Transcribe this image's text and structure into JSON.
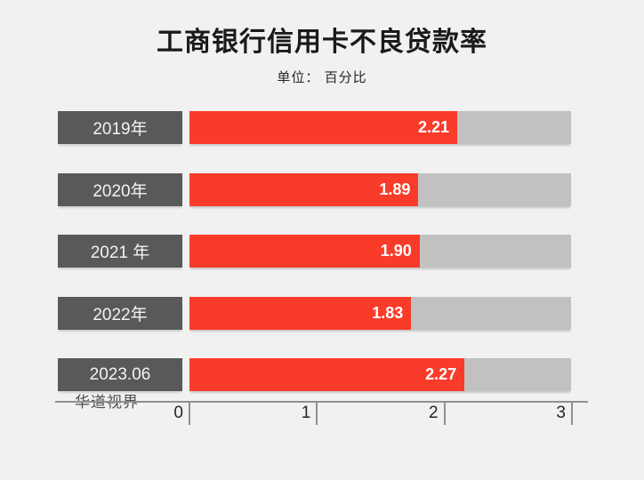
{
  "header": {
    "title": "工商银行信用卡不良贷款率",
    "subtitle": "单位： 百分比"
  },
  "watermark": "华道视界",
  "chart_data": {
    "type": "bar",
    "orientation": "horizontal",
    "title": "工商银行信用卡不良贷款率",
    "unit_label": "单位： 百分比",
    "categories": [
      "2019年",
      "2020年",
      "2021 年",
      "2022年",
      "2023.06"
    ],
    "values": [
      2.21,
      1.89,
      1.9,
      1.83,
      2.27
    ],
    "value_labels": [
      "2.21",
      "1.89",
      "1.90",
      "1.83",
      "2.27"
    ],
    "xlim": [
      0,
      3
    ],
    "x_ticks": [
      "0",
      "1",
      "2",
      "3"
    ],
    "grid": "off",
    "legend": "none",
    "colors": {
      "bar_fill": "#f93b2a",
      "bar_track": "#c1c1c1",
      "category_box": "#595959",
      "category_text": "#f2f2f2",
      "value_text": "#ffffff",
      "title_text": "#1a1a1a",
      "axis": "#8f8f8f",
      "background": "#f1f1f1",
      "watermark_text": "#4d4d4d"
    }
  }
}
